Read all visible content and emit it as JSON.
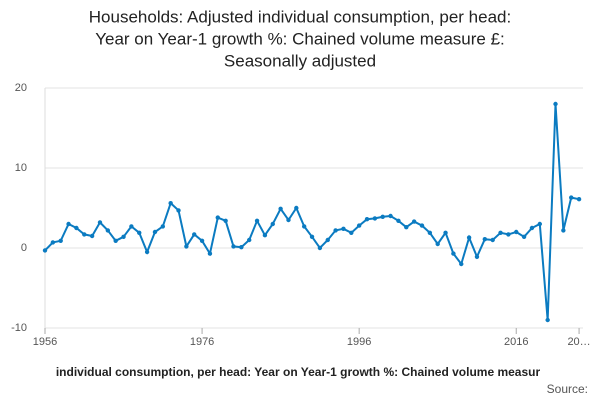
{
  "chart_data": {
    "type": "line",
    "title_lines": [
      "Households: Adjusted individual consumption, per head:",
      "Year on Year-1 growth %: Chained volume measure £:",
      "Seasonally adjusted"
    ],
    "x_label": "individual consumption, per head: Year on Year-1 growth %: Chained volume measur",
    "source": "Source:",
    "x": [
      1956,
      1957,
      1958,
      1959,
      1960,
      1961,
      1962,
      1963,
      1964,
      1965,
      1966,
      1967,
      1968,
      1969,
      1970,
      1971,
      1972,
      1973,
      1974,
      1975,
      1976,
      1977,
      1978,
      1979,
      1980,
      1981,
      1982,
      1983,
      1984,
      1985,
      1986,
      1987,
      1988,
      1989,
      1990,
      1991,
      1992,
      1993,
      1994,
      1995,
      1996,
      1997,
      1998,
      1999,
      2000,
      2001,
      2002,
      2003,
      2004,
      2005,
      2006,
      2007,
      2008,
      2009,
      2010,
      2011,
      2012,
      2013,
      2014,
      2015,
      2016,
      2017,
      2018,
      2019,
      2020,
      2021,
      2022,
      2023,
      2024
    ],
    "series": [
      {
        "name": "Year on Year-1 growth",
        "color": "#0b7bc1",
        "values": [
          -0.3,
          0.7,
          0.9,
          3.0,
          2.5,
          1.7,
          1.5,
          3.2,
          2.2,
          0.9,
          1.4,
          2.7,
          1.9,
          -0.5,
          2.0,
          2.7,
          5.6,
          4.7,
          0.2,
          1.7,
          0.9,
          -0.7,
          3.8,
          3.4,
          0.2,
          0.1,
          1.0,
          3.4,
          1.6,
          3.0,
          4.9,
          3.5,
          5.0,
          2.7,
          1.4,
          0.0,
          1.0,
          2.2,
          2.4,
          1.9,
          2.8,
          3.6,
          3.7,
          3.9,
          4.0,
          3.4,
          2.6,
          3.3,
          2.8,
          1.9,
          0.5,
          1.9,
          -0.7,
          -2.0,
          1.3,
          -1.1,
          1.1,
          1.0,
          1.9,
          1.7,
          2.0,
          1.4,
          2.5,
          3.0,
          -9.0,
          18.0,
          2.2,
          6.3,
          6.1
        ]
      }
    ],
    "xlim": [
      1956,
      2024.5
    ],
    "xticks": [
      1956,
      1976,
      1996,
      2016,
      {
        "value": 2024,
        "label": "20…"
      }
    ],
    "ylim": [
      -10,
      20
    ],
    "yticks": [
      -10,
      0,
      10,
      20
    ],
    "grid": true
  }
}
